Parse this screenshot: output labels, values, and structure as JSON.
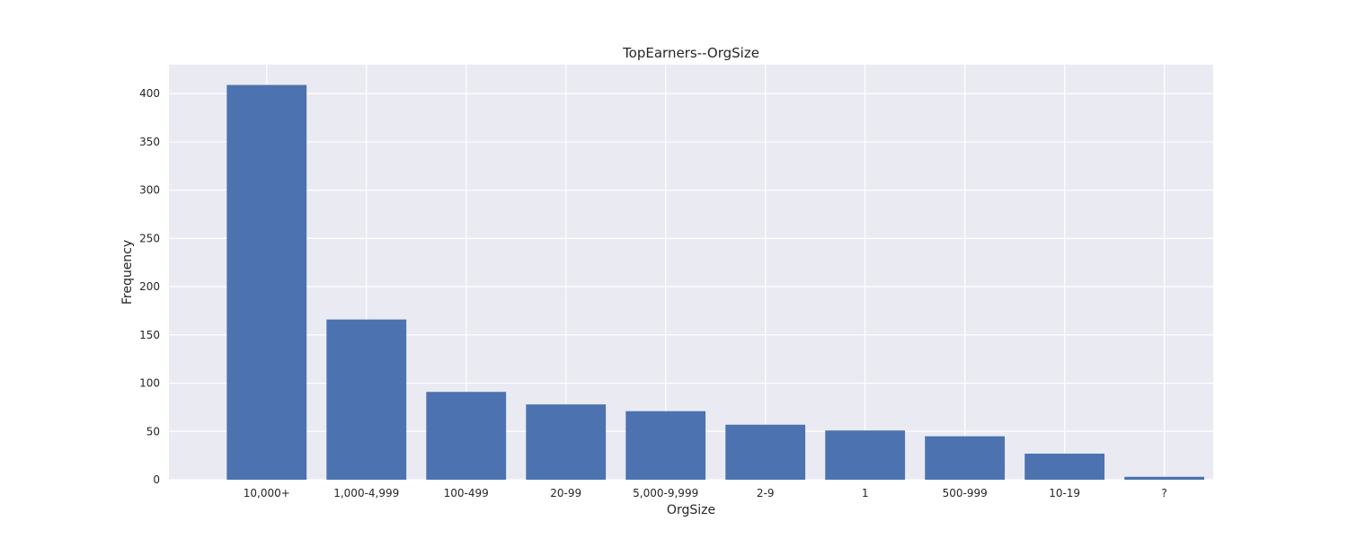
{
  "chart_data": {
    "type": "bar",
    "title": "TopEarners--OrgSize",
    "xlabel": "OrgSize",
    "ylabel": "Frequency",
    "categories": [
      "10,000+",
      "1,000-4,999",
      "100-499",
      "20-99",
      "5,000-9,999",
      "2-9",
      "1",
      "500-999",
      "10-19",
      "?"
    ],
    "values": [
      409,
      166,
      91,
      78,
      71,
      57,
      51,
      45,
      27,
      3
    ],
    "ylim": [
      0,
      430
    ],
    "yticks": [
      0,
      50,
      100,
      150,
      200,
      250,
      300,
      350,
      400
    ],
    "grid": true,
    "colors": {
      "bar": "#4c72b0",
      "plot_bg": "#eaeaf2",
      "grid": "#ffffff"
    }
  }
}
